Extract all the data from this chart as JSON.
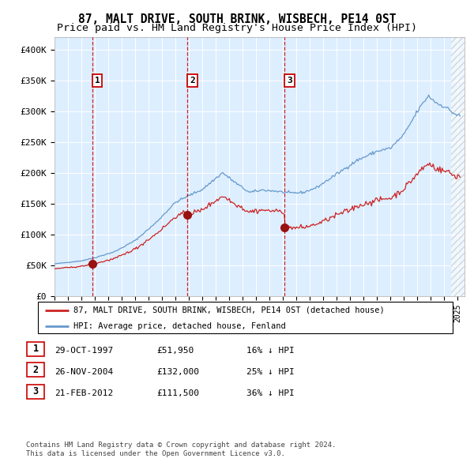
{
  "title": "87, MALT DRIVE, SOUTH BRINK, WISBECH, PE14 0ST",
  "subtitle": "Price paid vs. HM Land Registry's House Price Index (HPI)",
  "xlim": [
    1995.0,
    2025.5
  ],
  "ylim": [
    0,
    420000
  ],
  "yticks": [
    0,
    50000,
    100000,
    150000,
    200000,
    250000,
    300000,
    350000,
    400000
  ],
  "ytick_labels": [
    "£0",
    "£50K",
    "£100K",
    "£150K",
    "£200K",
    "£250K",
    "£300K",
    "£350K",
    "£400K"
  ],
  "hpi_color": "#6699cc",
  "price_color": "#cc2222",
  "vline_color": "#cc0000",
  "bg_color": "#ddeeff",
  "sale_dates": [
    1997.83,
    2004.9,
    2012.13
  ],
  "sale_prices": [
    51950,
    132000,
    111500
  ],
  "sale_labels": [
    "1",
    "2",
    "3"
  ],
  "legend_line1": "87, MALT DRIVE, SOUTH BRINK, WISBECH, PE14 0ST (detached house)",
  "legend_line2": "HPI: Average price, detached house, Fenland",
  "table": [
    [
      "1",
      "29-OCT-1997",
      "£51,950",
      "16% ↓ HPI"
    ],
    [
      "2",
      "26-NOV-2004",
      "£132,000",
      "25% ↓ HPI"
    ],
    [
      "3",
      "21-FEB-2012",
      "£111,500",
      "36% ↓ HPI"
    ]
  ],
  "footnote1": "Contains HM Land Registry data © Crown copyright and database right 2024.",
  "footnote2": "This data is licensed under the Open Government Licence v3.0.",
  "title_fontsize": 10.5,
  "subtitle_fontsize": 9.5
}
